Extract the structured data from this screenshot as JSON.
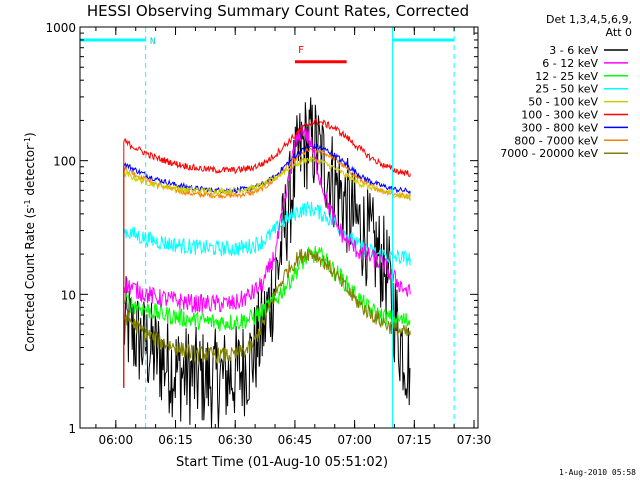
{
  "chart_data": {
    "type": "line",
    "title": "HESSI Observing Summary Count Rates, Corrected",
    "xlabel": "Start Time (01-Aug-10 05:51:02)",
    "ylabel_prefix": "Corrected Count Rate (s",
    "ylabel_sup": "-1",
    "ylabel_mid": " detector",
    "ylabel_end": ")",
    "yscale": "log",
    "ylim": [
      1,
      1000
    ],
    "xlim_minutes": [
      351.0,
      451.0
    ],
    "x_ticks": [
      {
        "label": "06:00",
        "t": 360
      },
      {
        "label": "06:15",
        "t": 375
      },
      {
        "label": "06:30",
        "t": 390
      },
      {
        "label": "06:45",
        "t": 405
      },
      {
        "label": "07:00",
        "t": 420
      },
      {
        "label": "07:15",
        "t": 435
      },
      {
        "label": "07:30",
        "t": 450
      }
    ],
    "y_ticks": [
      {
        "label": "1",
        "v": 1
      },
      {
        "label": "10",
        "v": 10
      },
      {
        "label": "100",
        "v": 100
      },
      {
        "label": "1000",
        "v": 1000
      }
    ],
    "legend_header": [
      "Det 1,3,4,5,6,9,",
      "Att 0"
    ],
    "legend_position": "right",
    "markers": {
      "n_label": "N",
      "f_label": "F",
      "night_segments": [
        [
          351.0,
          367.5
        ],
        [
          429.5,
          445.0
        ]
      ],
      "night_dashed_lines": [
        367.5,
        445.0
      ],
      "night_solid_lines": [
        351.0,
        429.5
      ],
      "flare_bar": [
        405.0,
        418.0
      ],
      "night_level": 800,
      "flare_level": 550
    },
    "series": [
      {
        "name": "3 - 6 keV",
        "color": "#000000",
        "noise": 0.38,
        "points": [
          [
            362,
            6
          ],
          [
            365,
            4.8
          ],
          [
            368,
            4
          ],
          [
            372,
            3.2
          ],
          [
            376,
            2.6
          ],
          [
            380,
            2.4
          ],
          [
            384,
            2.3
          ],
          [
            388,
            2.4
          ],
          [
            391,
            2.6
          ],
          [
            394,
            3.3
          ],
          [
            397,
            5.5
          ],
          [
            400,
            12
          ],
          [
            403,
            40
          ],
          [
            406,
            110
          ],
          [
            408,
            140
          ],
          [
            410,
            130
          ],
          [
            413,
            90
          ],
          [
            416,
            60
          ],
          [
            419,
            40
          ],
          [
            422,
            30
          ],
          [
            425,
            22
          ],
          [
            428,
            15
          ],
          [
            431,
            5
          ],
          [
            434,
            2.8
          ]
        ]
      },
      {
        "name": "6 - 12 keV",
        "color": "#ff00ff",
        "noise": 0.07,
        "points": [
          [
            362,
            12
          ],
          [
            366,
            10.5
          ],
          [
            370,
            9.5
          ],
          [
            375,
            9
          ],
          [
            380,
            8.5
          ],
          [
            385,
            8.5
          ],
          [
            390,
            8.5
          ],
          [
            394,
            10
          ],
          [
            397,
            12
          ],
          [
            400,
            20
          ],
          [
            403,
            60
          ],
          [
            405,
            130
          ],
          [
            407,
            175
          ],
          [
            409,
            135
          ],
          [
            411,
            80
          ],
          [
            413,
            50
          ],
          [
            415,
            35
          ],
          [
            418,
            25
          ],
          [
            421,
            21
          ],
          [
            424,
            19
          ],
          [
            427,
            17
          ],
          [
            430,
            13
          ],
          [
            434,
            10
          ]
        ]
      },
      {
        "name": "12 - 25 keV",
        "color": "#00ff00",
        "noise": 0.07,
        "points": [
          [
            362,
            9
          ],
          [
            366,
            8
          ],
          [
            370,
            7.3
          ],
          [
            375,
            6.8
          ],
          [
            380,
            6.4
          ],
          [
            385,
            6.2
          ],
          [
            390,
            6.2
          ],
          [
            394,
            6.6
          ],
          [
            397,
            7.5
          ],
          [
            400,
            9
          ],
          [
            403,
            12
          ],
          [
            406,
            16
          ],
          [
            408,
            19
          ],
          [
            410,
            20
          ],
          [
            412,
            19
          ],
          [
            414,
            16
          ],
          [
            417,
            13
          ],
          [
            420,
            10
          ],
          [
            423,
            8
          ],
          [
            426,
            7
          ],
          [
            430,
            6.5
          ],
          [
            434,
            6.3
          ]
        ]
      },
      {
        "name": "25 - 50 keV",
        "color": "#00ffff",
        "noise": 0.06,
        "points": [
          [
            362,
            30
          ],
          [
            366,
            27
          ],
          [
            370,
            25
          ],
          [
            375,
            23.5
          ],
          [
            380,
            22.5
          ],
          [
            385,
            22
          ],
          [
            390,
            22
          ],
          [
            394,
            23
          ],
          [
            397,
            25
          ],
          [
            400,
            30
          ],
          [
            403,
            37
          ],
          [
            406,
            42
          ],
          [
            408,
            44
          ],
          [
            410,
            43
          ],
          [
            413,
            38
          ],
          [
            416,
            32
          ],
          [
            419,
            26
          ],
          [
            422,
            22
          ],
          [
            426,
            20
          ],
          [
            430,
            19
          ],
          [
            434,
            18.5
          ]
        ]
      },
      {
        "name": "50 - 100 keV",
        "color": "#cccc00",
        "noise": 0.025,
        "points": [
          [
            362,
            80
          ],
          [
            366,
            72
          ],
          [
            370,
            66
          ],
          [
            375,
            62
          ],
          [
            380,
            60
          ],
          [
            385,
            59
          ],
          [
            390,
            60
          ],
          [
            394,
            62
          ],
          [
            397,
            66
          ],
          [
            400,
            74
          ],
          [
            403,
            86
          ],
          [
            406,
            97
          ],
          [
            408,
            102
          ],
          [
            410,
            101
          ],
          [
            413,
            94
          ],
          [
            416,
            84
          ],
          [
            419,
            74
          ],
          [
            422,
            66
          ],
          [
            426,
            60
          ],
          [
            430,
            56
          ],
          [
            434,
            53
          ]
        ]
      },
      {
        "name": "100 - 300 keV",
        "color": "#ff0000",
        "noise": 0.025,
        "points": [
          [
            362,
            140
          ],
          [
            366,
            120
          ],
          [
            370,
            105
          ],
          [
            375,
            95
          ],
          [
            380,
            88
          ],
          [
            385,
            85
          ],
          [
            390,
            85
          ],
          [
            394,
            88
          ],
          [
            397,
            95
          ],
          [
            400,
            110
          ],
          [
            403,
            135
          ],
          [
            406,
            165
          ],
          [
            408,
            185
          ],
          [
            410,
            195
          ],
          [
            412,
            192
          ],
          [
            415,
            175
          ],
          [
            418,
            150
          ],
          [
            421,
            125
          ],
          [
            424,
            105
          ],
          [
            428,
            90
          ],
          [
            431,
            83
          ],
          [
            434,
            80
          ]
        ]
      },
      {
        "name": "300 - 800 keV",
        "color": "#0000ff",
        "noise": 0.02,
        "points": [
          [
            362,
            95
          ],
          [
            366,
            82
          ],
          [
            370,
            73
          ],
          [
            375,
            66
          ],
          [
            380,
            62
          ],
          [
            385,
            60
          ],
          [
            390,
            60
          ],
          [
            394,
            62
          ],
          [
            397,
            67
          ],
          [
            400,
            76
          ],
          [
            403,
            95
          ],
          [
            406,
            115
          ],
          [
            408,
            125
          ],
          [
            410,
            128
          ],
          [
            413,
            120
          ],
          [
            416,
            105
          ],
          [
            419,
            88
          ],
          [
            422,
            75
          ],
          [
            426,
            66
          ],
          [
            430,
            61
          ],
          [
            434,
            59
          ]
        ]
      },
      {
        "name": "800 - 7000 keV",
        "color": "#ff8000",
        "noise": 0.02,
        "points": [
          [
            362,
            88
          ],
          [
            366,
            76
          ],
          [
            370,
            67
          ],
          [
            375,
            60
          ],
          [
            380,
            56
          ],
          [
            385,
            55
          ],
          [
            390,
            55
          ],
          [
            394,
            57
          ],
          [
            397,
            62
          ],
          [
            400,
            72
          ],
          [
            403,
            90
          ],
          [
            406,
            108
          ],
          [
            408,
            118
          ],
          [
            410,
            120
          ],
          [
            413,
            112
          ],
          [
            416,
            98
          ],
          [
            419,
            82
          ],
          [
            422,
            70
          ],
          [
            426,
            61
          ],
          [
            430,
            56
          ],
          [
            434,
            54
          ]
        ]
      },
      {
        "name": "7000 - 20000 keV",
        "color": "#808000",
        "noise": 0.06,
        "points": [
          [
            362,
            7
          ],
          [
            366,
            5.5
          ],
          [
            370,
            4.6
          ],
          [
            375,
            4
          ],
          [
            380,
            3.6
          ],
          [
            385,
            3.5
          ],
          [
            390,
            3.5
          ],
          [
            394,
            4
          ],
          [
            397,
            6
          ],
          [
            400,
            10
          ],
          [
            403,
            15
          ],
          [
            406,
            19
          ],
          [
            408,
            20.5
          ],
          [
            410,
            20
          ],
          [
            413,
            17
          ],
          [
            416,
            13
          ],
          [
            419,
            10
          ],
          [
            422,
            8
          ],
          [
            426,
            6.5
          ],
          [
            430,
            5.5
          ],
          [
            434,
            5
          ]
        ]
      }
    ]
  },
  "footer": {
    "timestamp": "1-Aug-2010 05:58"
  }
}
